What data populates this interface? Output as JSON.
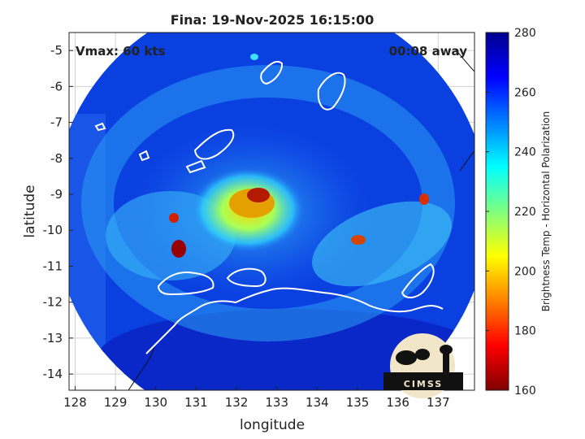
{
  "title": "Fina: 19-Nov-2025 16:15:00",
  "annotations": {
    "vmax": "Vmax: 60 kts",
    "time_away": "00:08 away"
  },
  "axes": {
    "xlabel": "longitude",
    "ylabel": "latitude",
    "xlim": [
      127.85,
      137.9
    ],
    "ylim": [
      -14.45,
      -4.5
    ],
    "xticks": [
      "128",
      "129",
      "130",
      "131",
      "132",
      "133",
      "134",
      "135",
      "136",
      "137"
    ],
    "yticks": [
      "-5",
      "-6",
      "-7",
      "-8",
      "-9",
      "-10",
      "-11",
      "-12",
      "-13",
      "-14"
    ],
    "grid": true
  },
  "colorbar": {
    "label": "Brightness Temp - Horizontal Polarization",
    "min": 160,
    "max": 280,
    "ticks": [
      "280",
      "260",
      "240",
      "220",
      "200",
      "180",
      "160"
    ],
    "colormap": "jet"
  },
  "logo": {
    "text": "CIMSS"
  },
  "scan": {
    "center_lon": 132.85,
    "center_lat": -9.5,
    "radius_deg": 5.4
  },
  "storm_center": {
    "lon": 132.6,
    "lat": -9.3
  },
  "colors": {
    "background_cold": "#0a2fd0",
    "ocean_mid": "#1f6ff0",
    "land_outline": "#ffffff",
    "axes_frame": "#222222"
  }
}
